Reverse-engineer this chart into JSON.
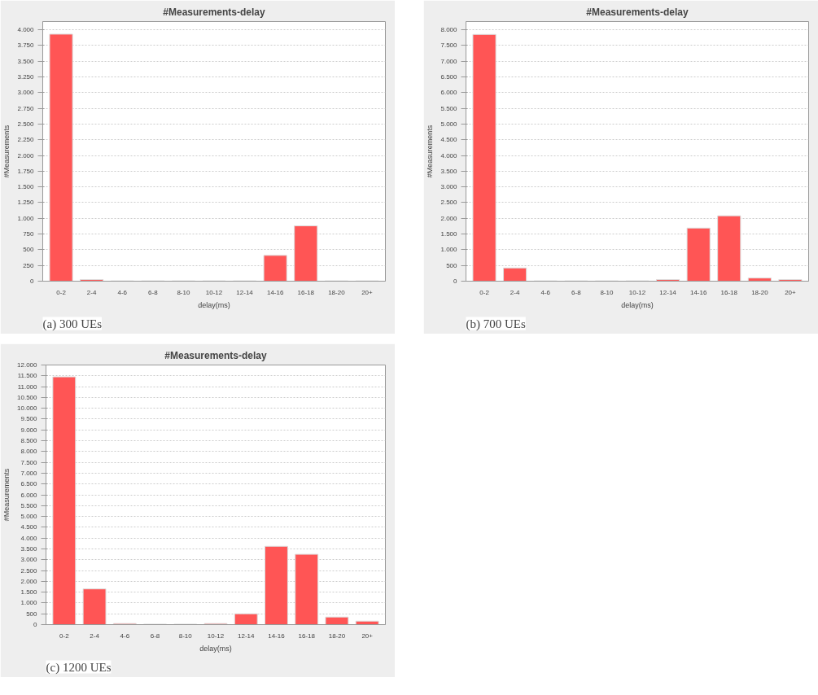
{
  "chart_data": [
    {
      "type": "bar",
      "title": "#Measurements-delay",
      "xlabel": "delay(ms)",
      "ylabel": "#Measurements",
      "annotations": [
        "(a) 300 UEs"
      ],
      "categories": [
        "0-2",
        "2-4",
        "4-6",
        "6-8",
        "8-10",
        "10-12",
        "12-14",
        "14-16",
        "16-18",
        "18-20",
        "20+"
      ],
      "values": [
        3930,
        25,
        5,
        5,
        5,
        5,
        5,
        410,
        880,
        5,
        5
      ],
      "color": "#ff5555",
      "ylim": [
        0,
        4130
      ],
      "yticks": [
        0,
        250,
        500,
        750,
        {
          "value": 1000,
          "label": "1.000"
        },
        {
          "value": 1250,
          "label": "1.250"
        },
        {
          "value": 1500,
          "label": "1.500"
        },
        {
          "value": 1750,
          "label": "1.750"
        },
        {
          "value": 2000,
          "label": "2.000"
        },
        {
          "value": 2250,
          "label": "2.250"
        },
        {
          "value": 2500,
          "label": "2.500"
        },
        {
          "value": 2750,
          "label": "2.750"
        },
        {
          "value": 3000,
          "label": "3.000"
        },
        {
          "value": 3250,
          "label": "3.250"
        },
        {
          "value": 3500,
          "label": "3.500"
        },
        {
          "value": 3750,
          "label": "3.750"
        },
        {
          "value": 4000,
          "label": "4.000"
        }
      ],
      "grid": "y"
    },
    {
      "type": "bar",
      "title": "#Measurements-delay",
      "xlabel": "delay(ms)",
      "ylabel": "#Measurements",
      "annotations": [
        "(b) 700 UEs"
      ],
      "categories": [
        "0-2",
        "2-4",
        "4-6",
        "6-8",
        "8-10",
        "10-12",
        "12-14",
        "14-16",
        "16-18",
        "18-20",
        "20+"
      ],
      "values": [
        7850,
        420,
        10,
        10,
        10,
        10,
        50,
        1690,
        2080,
        100,
        50
      ],
      "color": "#ff5555",
      "ylim": [
        0,
        8260
      ],
      "yticks": [
        0,
        500,
        {
          "value": 1000,
          "label": "1.000"
        },
        {
          "value": 1500,
          "label": "1.500"
        },
        {
          "value": 2000,
          "label": "2.000"
        },
        {
          "value": 2500,
          "label": "2.500"
        },
        {
          "value": 3000,
          "label": "3.000"
        },
        {
          "value": 3500,
          "label": "3.500"
        },
        {
          "value": 4000,
          "label": "4.000"
        },
        {
          "value": 4500,
          "label": "4.500"
        },
        {
          "value": 5000,
          "label": "5.000"
        },
        {
          "value": 5500,
          "label": "5.500"
        },
        {
          "value": 6000,
          "label": "6.000"
        },
        {
          "value": 6500,
          "label": "6.500"
        },
        {
          "value": 7000,
          "label": "7.000"
        },
        {
          "value": 7500,
          "label": "7.500"
        },
        {
          "value": 8000,
          "label": "8.000"
        }
      ],
      "grid": "y"
    },
    {
      "type": "bar",
      "title": "#Measurements-delay",
      "xlabel": "delay(ms)",
      "ylabel": "#Measurements",
      "annotations": [
        "(c) 1200 UEs"
      ],
      "categories": [
        "0-2",
        "2-4",
        "4-6",
        "6-8",
        "8-10",
        "10-12",
        "12-14",
        "14-16",
        "16-18",
        "18-20",
        "20+"
      ],
      "values": [
        11450,
        1650,
        50,
        20,
        20,
        50,
        500,
        3620,
        3250,
        350,
        160
      ],
      "color": "#ff5555",
      "ylim": [
        0,
        12000
      ],
      "yticks": [
        0,
        500,
        {
          "value": 1000,
          "label": "1.000"
        },
        {
          "value": 1500,
          "label": "1.500"
        },
        {
          "value": 2000,
          "label": "2.000"
        },
        {
          "value": 2500,
          "label": "2.500"
        },
        {
          "value": 3000,
          "label": "3.000"
        },
        {
          "value": 3500,
          "label": "3.500"
        },
        {
          "value": 4000,
          "label": "4.000"
        },
        {
          "value": 4500,
          "label": "4.500"
        },
        {
          "value": 5000,
          "label": "5.000"
        },
        {
          "value": 5500,
          "label": "5.500"
        },
        {
          "value": 6000,
          "label": "6.000"
        },
        {
          "value": 6500,
          "label": "6.500"
        },
        {
          "value": 7000,
          "label": "7.000"
        },
        {
          "value": 7500,
          "label": "7.500"
        },
        {
          "value": 8000,
          "label": "8.000"
        },
        {
          "value": 8500,
          "label": "8.500"
        },
        {
          "value": 9000,
          "label": "9.000"
        },
        {
          "value": 9500,
          "label": "9.500"
        },
        {
          "value": 10000,
          "label": "10.000"
        },
        {
          "value": 10500,
          "label": "10.500"
        },
        {
          "value": 11000,
          "label": "11.000"
        },
        {
          "value": 11500,
          "label": "11.500"
        },
        {
          "value": 12000,
          "label": "12.000"
        }
      ],
      "grid": "y"
    }
  ]
}
